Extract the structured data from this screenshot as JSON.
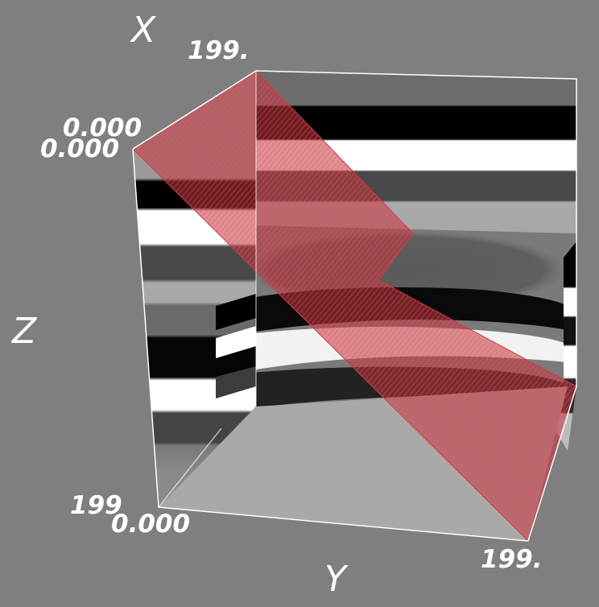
{
  "axes": {
    "x": {
      "name": "X",
      "min_label": "0.000",
      "max_label": "199."
    },
    "y": {
      "name": "Y",
      "min_label": "0.000",
      "max_label": "199."
    },
    "z": {
      "name": "Z",
      "top_label": "0.000",
      "bottom_label": "199"
    }
  },
  "colors": {
    "background": "#7f7f7f",
    "slice_plane": "#c8323c",
    "frame": "#ffffff"
  }
}
